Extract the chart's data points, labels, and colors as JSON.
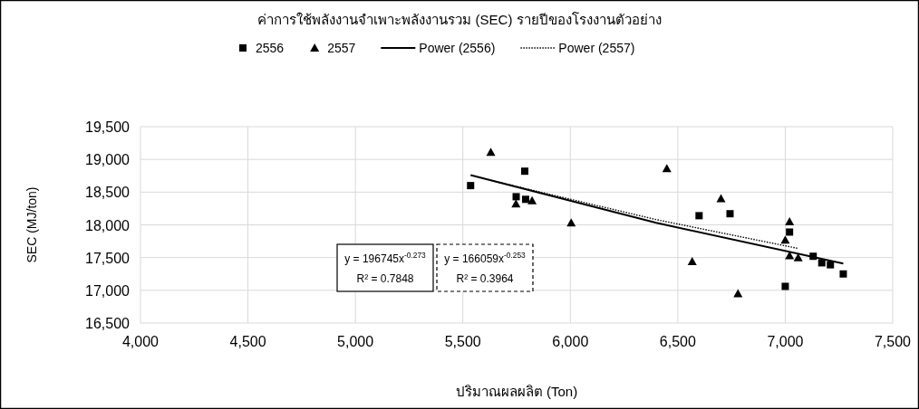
{
  "chart_data": {
    "type": "scatter",
    "title": "ค่าการใช้พลังงานจำเพาะพลังงานรวม (SEC) รายปีของโรงงานตัวอย่าง",
    "xlabel": "ปริมาณผลผลิต (Ton)",
    "ylabel": "SEC (MJ/ton)",
    "xlim": [
      4000,
      7500
    ],
    "xticks": [
      {
        "value": 4000,
        "label": "4,000"
      },
      {
        "value": 4500,
        "label": "4,500"
      },
      {
        "value": 5000,
        "label": "5,000"
      },
      {
        "value": 5500,
        "label": "5,500"
      },
      {
        "value": 6000,
        "label": "6,000"
      },
      {
        "value": 6500,
        "label": "6,500"
      },
      {
        "value": 7000,
        "label": "7,000"
      },
      {
        "value": 7500,
        "label": "7,500"
      }
    ],
    "ylim": [
      16500,
      19500
    ],
    "yticks": [
      {
        "value": 16500,
        "label": "16,500"
      },
      {
        "value": 17000,
        "label": "17,000"
      },
      {
        "value": 17500,
        "label": "17,500"
      },
      {
        "value": 18000,
        "label": "18,000"
      },
      {
        "value": 18500,
        "label": "18,500"
      },
      {
        "value": 19000,
        "label": "19,000"
      },
      {
        "value": 19500,
        "label": "19,500"
      }
    ],
    "grid": true,
    "legend": "top",
    "series": [
      {
        "name": "2556",
        "marker": "square",
        "color": "#000000",
        "x": [
          5536,
          5788,
          5748,
          5792,
          6599,
          6743,
          7000,
          7020,
          7130,
          7170,
          7210,
          7270
        ],
        "values": [
          18600,
          18820,
          18430,
          18390,
          18140,
          18170,
          17060,
          17890,
          17520,
          17420,
          17390,
          17250
        ]
      },
      {
        "name": "2557",
        "marker": "triangle",
        "color": "#000000",
        "x": [
          5630,
          5747,
          5822,
          6004,
          6449,
          6567,
          6701,
          6780,
          7000,
          7020,
          7020,
          7060
        ],
        "values": [
          19110,
          18320,
          18370,
          18030,
          18860,
          17440,
          18400,
          16950,
          17770,
          18050,
          17530,
          17500
        ]
      },
      {
        "name": "Power (2556)",
        "type": "line",
        "line_style": "solid",
        "marker": "none",
        "color": "#000000",
        "x": [
          5536,
          6400,
          7270
        ],
        "values": [
          18760,
          18030,
          17410
        ]
      },
      {
        "name": "Power (2557)",
        "type": "line",
        "line_style": "dotted",
        "marker": "none",
        "color": "#000000",
        "x": [
          5630,
          6400,
          7060
        ],
        "values": [
          18680,
          18080,
          17640
        ]
      }
    ],
    "annotations": [
      "y = 196745x$^{-0.273}$\nR² = 0.7848",
      "y = 166059x$^{-0.253}$\nR² = 0.3964"
    ]
  }
}
